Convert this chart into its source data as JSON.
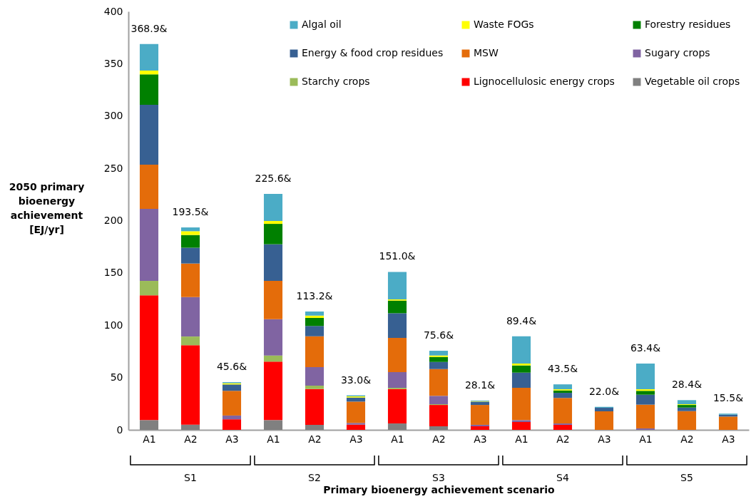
{
  "chart_data": {
    "type": "bar",
    "stacked": true,
    "xlabel": "Primary bioenergy achievement scenario",
    "ylabel": "2050 primary bioenergy achievement [EJ/yr]",
    "categories": [
      "A1",
      "A2",
      "A3",
      "A1",
      "A2",
      "A3",
      "A1",
      "A2",
      "A3",
      "A1",
      "A2",
      "A3",
      "A1",
      "A2",
      "A3"
    ],
    "annotations": [
      "S1",
      "S2",
      "S3",
      "S4",
      "S5"
    ],
    "ylim": [
      0,
      400
    ],
    "yticks": [
      0,
      50,
      100,
      150,
      200,
      250,
      300,
      350,
      400
    ],
    "legend": "top right",
    "series": [
      {
        "name": "Vegetable oil crops",
        "color": "#808080",
        "values": [
          9.3,
          5.0,
          0,
          9.3,
          4.8,
          0,
          6.1,
          3.4,
          0,
          0,
          0,
          0,
          0,
          0,
          0
        ]
      },
      {
        "name": "Lignocellulosic energy crops",
        "color": "#ff0000",
        "values": [
          119.3,
          75.9,
          10.1,
          55.9,
          34.2,
          5.0,
          32.9,
          20.4,
          3.4,
          7.5,
          4.8,
          0,
          0,
          0,
          0
        ]
      },
      {
        "name": "Starchy crops",
        "color": "#9bbb59",
        "values": [
          13.8,
          8.3,
          0,
          5.9,
          3.2,
          0,
          1.2,
          0.7,
          0,
          0,
          0,
          0,
          0,
          0,
          0
        ]
      },
      {
        "name": "Sugary crops",
        "color": "#8064a2",
        "values": [
          68.9,
          37.7,
          3.6,
          34.7,
          17.8,
          1.6,
          15.0,
          8.0,
          1.4,
          1.8,
          1.3,
          0,
          1.4,
          0,
          0
        ]
      },
      {
        "name": "MSW",
        "color": "#e46c0a",
        "values": [
          42.2,
          32.1,
          23.6,
          36.6,
          29.5,
          20.4,
          32.7,
          25.6,
          19.0,
          30.9,
          24.4,
          17.7,
          22.7,
          17.9,
          12.7
        ]
      },
      {
        "name": "Energy & food crop residues",
        "color": "#376092",
        "values": [
          57.2,
          15.1,
          6.1,
          35.0,
          9.8,
          3.9,
          23.6,
          6.8,
          3.2,
          14.5,
          4.9,
          3.4,
          9.5,
          3.4,
          1.8
        ]
      },
      {
        "name": "Forestry residues",
        "color": "#008000",
        "values": [
          29.1,
          12.2,
          0,
          19.5,
          7.6,
          0,
          12.1,
          4.8,
          0,
          6.9,
          2.3,
          0,
          3.7,
          2.5,
          0
        ]
      },
      {
        "name": "Waste FOGs",
        "color": "#ffff00",
        "values": [
          3.7,
          3.6,
          1.2,
          2.8,
          2.3,
          1.1,
          1.1,
          1.4,
          0.5,
          1.8,
          1.1,
          0,
          1.5,
          0.7,
          0
        ]
      },
      {
        "name": "Algal oil",
        "color": "#4bacc6",
        "values": [
          25.4,
          3.6,
          1.0,
          25.9,
          4.0,
          1.0,
          26.3,
          4.5,
          0.6,
          26.0,
          4.7,
          0.9,
          24.6,
          3.9,
          1.0
        ]
      }
    ],
    "totals": [
      "368.9&",
      "193.5&",
      "45.6&",
      "225.6&",
      "113.2&",
      "33.0&",
      "151.0&",
      "75.6&",
      "28.1&",
      "89.4&",
      "43.5&",
      "22.0&",
      "63.4&",
      "28.4&",
      "15.5&"
    ]
  }
}
